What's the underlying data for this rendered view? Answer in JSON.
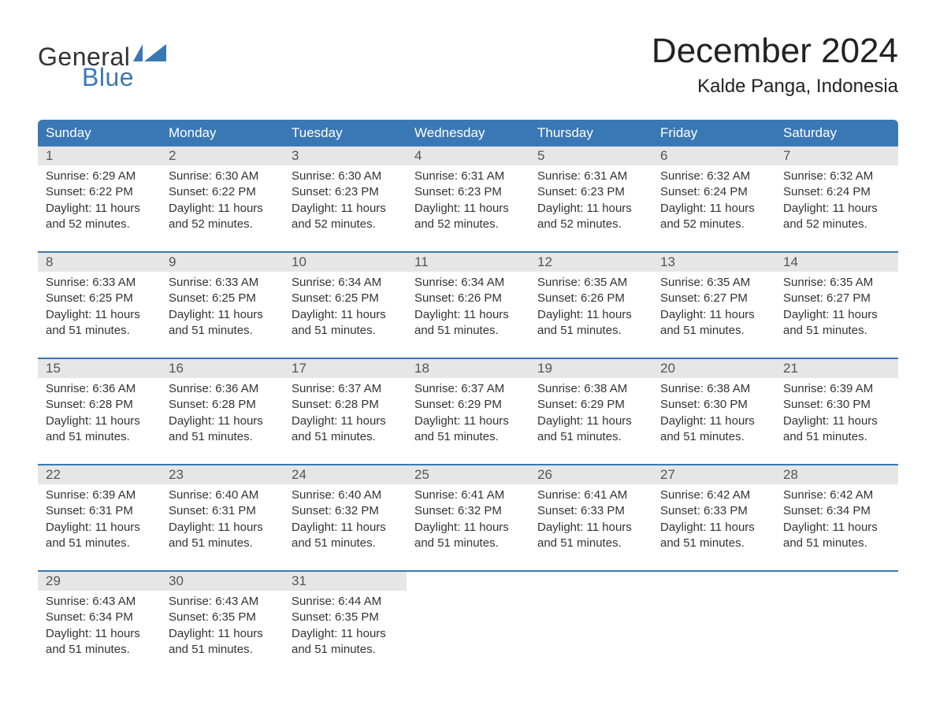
{
  "brand": {
    "text_top": "General",
    "text_bottom": "Blue",
    "top_color": "#333333",
    "bottom_color": "#3a78b5",
    "flag_color": "#3a78b5"
  },
  "title": "December 2024",
  "location": "Kalde Panga, Indonesia",
  "colors": {
    "header_bg": "#3a78b5",
    "header_text": "#ffffff",
    "week_border": "#3a78b5",
    "daynum_bg": "#e6e6e6",
    "body_text": "#333333",
    "page_bg": "#ffffff"
  },
  "fonts": {
    "title_size_pt": 33,
    "location_size_pt": 18,
    "header_size_pt": 13,
    "body_size_pt": 11
  },
  "day_names": [
    "Sunday",
    "Monday",
    "Tuesday",
    "Wednesday",
    "Thursday",
    "Friday",
    "Saturday"
  ],
  "labels": {
    "sunrise_prefix": "Sunrise: ",
    "sunset_prefix": "Sunset: ",
    "daylight_prefix": "Daylight: ",
    "daylight_join": " and ",
    "daylight_suffix": "."
  },
  "weeks": [
    [
      {
        "day": "1",
        "sunrise": "6:29 AM",
        "sunset": "6:22 PM",
        "daylight_h": "11 hours",
        "daylight_m": "52 minutes"
      },
      {
        "day": "2",
        "sunrise": "6:30 AM",
        "sunset": "6:22 PM",
        "daylight_h": "11 hours",
        "daylight_m": "52 minutes"
      },
      {
        "day": "3",
        "sunrise": "6:30 AM",
        "sunset": "6:23 PM",
        "daylight_h": "11 hours",
        "daylight_m": "52 minutes"
      },
      {
        "day": "4",
        "sunrise": "6:31 AM",
        "sunset": "6:23 PM",
        "daylight_h": "11 hours",
        "daylight_m": "52 minutes"
      },
      {
        "day": "5",
        "sunrise": "6:31 AM",
        "sunset": "6:23 PM",
        "daylight_h": "11 hours",
        "daylight_m": "52 minutes"
      },
      {
        "day": "6",
        "sunrise": "6:32 AM",
        "sunset": "6:24 PM",
        "daylight_h": "11 hours",
        "daylight_m": "52 minutes"
      },
      {
        "day": "7",
        "sunrise": "6:32 AM",
        "sunset": "6:24 PM",
        "daylight_h": "11 hours",
        "daylight_m": "52 minutes"
      }
    ],
    [
      {
        "day": "8",
        "sunrise": "6:33 AM",
        "sunset": "6:25 PM",
        "daylight_h": "11 hours",
        "daylight_m": "51 minutes"
      },
      {
        "day": "9",
        "sunrise": "6:33 AM",
        "sunset": "6:25 PM",
        "daylight_h": "11 hours",
        "daylight_m": "51 minutes"
      },
      {
        "day": "10",
        "sunrise": "6:34 AM",
        "sunset": "6:25 PM",
        "daylight_h": "11 hours",
        "daylight_m": "51 minutes"
      },
      {
        "day": "11",
        "sunrise": "6:34 AM",
        "sunset": "6:26 PM",
        "daylight_h": "11 hours",
        "daylight_m": "51 minutes"
      },
      {
        "day": "12",
        "sunrise": "6:35 AM",
        "sunset": "6:26 PM",
        "daylight_h": "11 hours",
        "daylight_m": "51 minutes"
      },
      {
        "day": "13",
        "sunrise": "6:35 AM",
        "sunset": "6:27 PM",
        "daylight_h": "11 hours",
        "daylight_m": "51 minutes"
      },
      {
        "day": "14",
        "sunrise": "6:35 AM",
        "sunset": "6:27 PM",
        "daylight_h": "11 hours",
        "daylight_m": "51 minutes"
      }
    ],
    [
      {
        "day": "15",
        "sunrise": "6:36 AM",
        "sunset": "6:28 PM",
        "daylight_h": "11 hours",
        "daylight_m": "51 minutes"
      },
      {
        "day": "16",
        "sunrise": "6:36 AM",
        "sunset": "6:28 PM",
        "daylight_h": "11 hours",
        "daylight_m": "51 minutes"
      },
      {
        "day": "17",
        "sunrise": "6:37 AM",
        "sunset": "6:28 PM",
        "daylight_h": "11 hours",
        "daylight_m": "51 minutes"
      },
      {
        "day": "18",
        "sunrise": "6:37 AM",
        "sunset": "6:29 PM",
        "daylight_h": "11 hours",
        "daylight_m": "51 minutes"
      },
      {
        "day": "19",
        "sunrise": "6:38 AM",
        "sunset": "6:29 PM",
        "daylight_h": "11 hours",
        "daylight_m": "51 minutes"
      },
      {
        "day": "20",
        "sunrise": "6:38 AM",
        "sunset": "6:30 PM",
        "daylight_h": "11 hours",
        "daylight_m": "51 minutes"
      },
      {
        "day": "21",
        "sunrise": "6:39 AM",
        "sunset": "6:30 PM",
        "daylight_h": "11 hours",
        "daylight_m": "51 minutes"
      }
    ],
    [
      {
        "day": "22",
        "sunrise": "6:39 AM",
        "sunset": "6:31 PM",
        "daylight_h": "11 hours",
        "daylight_m": "51 minutes"
      },
      {
        "day": "23",
        "sunrise": "6:40 AM",
        "sunset": "6:31 PM",
        "daylight_h": "11 hours",
        "daylight_m": "51 minutes"
      },
      {
        "day": "24",
        "sunrise": "6:40 AM",
        "sunset": "6:32 PM",
        "daylight_h": "11 hours",
        "daylight_m": "51 minutes"
      },
      {
        "day": "25",
        "sunrise": "6:41 AM",
        "sunset": "6:32 PM",
        "daylight_h": "11 hours",
        "daylight_m": "51 minutes"
      },
      {
        "day": "26",
        "sunrise": "6:41 AM",
        "sunset": "6:33 PM",
        "daylight_h": "11 hours",
        "daylight_m": "51 minutes"
      },
      {
        "day": "27",
        "sunrise": "6:42 AM",
        "sunset": "6:33 PM",
        "daylight_h": "11 hours",
        "daylight_m": "51 minutes"
      },
      {
        "day": "28",
        "sunrise": "6:42 AM",
        "sunset": "6:34 PM",
        "daylight_h": "11 hours",
        "daylight_m": "51 minutes"
      }
    ],
    [
      {
        "day": "29",
        "sunrise": "6:43 AM",
        "sunset": "6:34 PM",
        "daylight_h": "11 hours",
        "daylight_m": "51 minutes"
      },
      {
        "day": "30",
        "sunrise": "6:43 AM",
        "sunset": "6:35 PM",
        "daylight_h": "11 hours",
        "daylight_m": "51 minutes"
      },
      {
        "day": "31",
        "sunrise": "6:44 AM",
        "sunset": "6:35 PM",
        "daylight_h": "11 hours",
        "daylight_m": "51 minutes"
      },
      {
        "empty": true
      },
      {
        "empty": true
      },
      {
        "empty": true
      },
      {
        "empty": true
      }
    ]
  ]
}
